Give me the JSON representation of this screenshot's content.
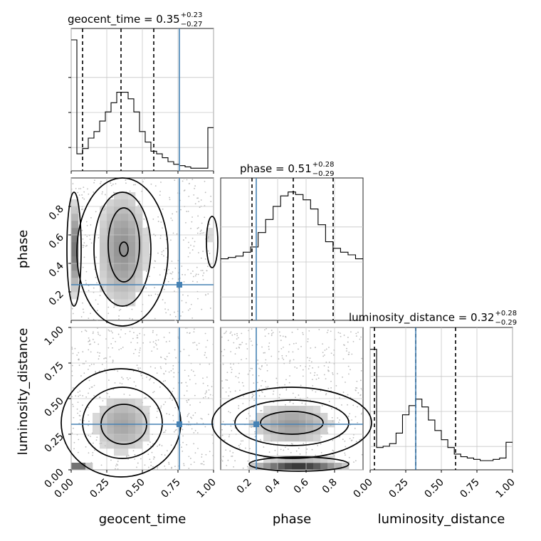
{
  "chart_data": {
    "type": "corner",
    "parameters": [
      "geocent_time",
      "phase",
      "luminosity_distance"
    ],
    "truth": {
      "geocent_time": 0.76,
      "phase": 0.25,
      "luminosity_distance": 0.32
    },
    "titles": [
      {
        "param": "geocent_time",
        "label": "geocent_time = 0.35",
        "plus": "+0.23",
        "minus": "−0.27",
        "median": 0.35,
        "q_low": 0.08,
        "q_high": 0.58
      },
      {
        "param": "phase",
        "label": "phase = 0.51",
        "plus": "+0.28",
        "minus": "−0.29",
        "median": 0.51,
        "q_low": 0.22,
        "q_high": 0.79
      },
      {
        "param": "luminosity_distance",
        "label": "luminosity_distance = 0.32",
        "plus": "+0.28",
        "minus": "−0.29",
        "median": 0.32,
        "q_low": 0.03,
        "q_high": 0.6
      }
    ],
    "axes": {
      "geocent_time": {
        "range": [
          0,
          1
        ],
        "ticks": [
          "0.00",
          "0.25",
          "0.50",
          "0.75",
          "1.00"
        ],
        "tick_values": [
          0,
          0.25,
          0.5,
          0.75,
          1.0
        ]
      },
      "phase": {
        "range": [
          0,
          1
        ],
        "ticks": [
          "0.2",
          "0.4",
          "0.6",
          "0.8"
        ],
        "tick_values": [
          0.2,
          0.4,
          0.6,
          0.8
        ]
      },
      "luminosity_distance": {
        "range": [
          0,
          1
        ],
        "ticks": [
          "0.00",
          "0.25",
          "0.50",
          "0.75",
          "1.00"
        ],
        "tick_values": [
          0,
          0.25,
          0.5,
          0.75,
          1.0
        ]
      }
    },
    "xlabels": [
      "geocent_time",
      "phase",
      "luminosity_distance"
    ],
    "ylabels": [
      "phase",
      "luminosity_distance"
    ],
    "histograms": {
      "geocent_time": [
        1.0,
        0.13,
        0.17,
        0.25,
        0.3,
        0.38,
        0.45,
        0.52,
        0.6,
        0.6,
        0.55,
        0.45,
        0.3,
        0.22,
        0.15,
        0.13,
        0.1,
        0.07,
        0.05,
        0.04,
        0.03,
        0.02,
        0.02,
        0.02,
        0.33
      ],
      "phase": [
        0.47,
        0.48,
        0.49,
        0.52,
        0.56,
        0.67,
        0.77,
        0.87,
        0.95,
        0.98,
        0.96,
        0.92,
        0.85,
        0.73,
        0.6,
        0.55,
        0.52,
        0.5,
        0.47
      ],
      "luminosity_distance": [
        0.92,
        0.17,
        0.18,
        0.2,
        0.28,
        0.42,
        0.49,
        0.54,
        0.48,
        0.38,
        0.3,
        0.23,
        0.17,
        0.12,
        0.1,
        0.09,
        0.08,
        0.07,
        0.07,
        0.08,
        0.09,
        0.21
      ]
    },
    "grid": true
  }
}
